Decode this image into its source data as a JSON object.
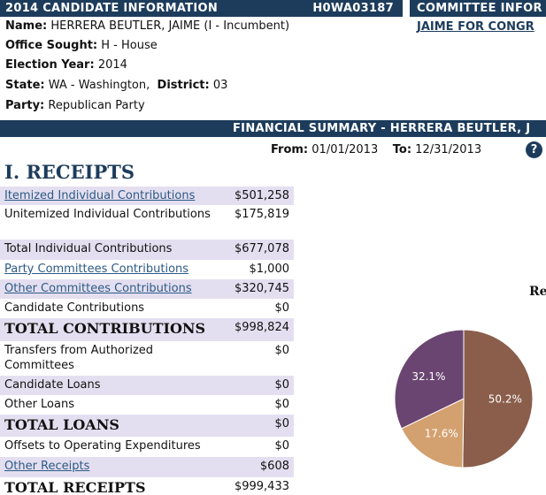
{
  "candidate": {
    "header": "2014 CANDIDATE INFORMATION",
    "id": "H0WA03187",
    "name_label": "Name:",
    "name": "HERRERA BEUTLER, JAIME (I - Incumbent)",
    "office_label": "Office Sought:",
    "office": "H - House",
    "year_label": "Election Year:",
    "year": "2014",
    "state_label": "State:",
    "state": "WA - Washington,",
    "district_label": "District:",
    "district": "03",
    "party_label": "Party:",
    "party": "Republican Party"
  },
  "committee": {
    "header": "COMMITTEE INFOR",
    "name": "JAIME FOR CONGR"
  },
  "summary": {
    "title": "FINANCIAL SUMMARY - HERRERA BEUTLER, J",
    "from_label": "From:",
    "from": "01/01/2013",
    "to_label": "To:",
    "to": "12/31/2013",
    "help": "?"
  },
  "receipts": {
    "title": "I. RECEIPTS",
    "rows": [
      {
        "label": "Itemized Individual Contributions",
        "amount": "$501,258",
        "link": true
      },
      {
        "label": "Unitemized Individual Contributions",
        "amount": "$175,819"
      },
      {
        "label": "Total Individual Contributions",
        "amount": "$677,078"
      },
      {
        "label": "Party Committees Contributions",
        "amount": "$1,000",
        "link": true
      },
      {
        "label": "Other Committees Contributions",
        "amount": "$320,745",
        "link": true
      },
      {
        "label": "Candidate Contributions",
        "amount": "$0"
      },
      {
        "label": "TOTAL CONTRIBUTIONS",
        "amount": "$998,824",
        "total": true
      },
      {
        "label": "Transfers from Authorized Committees",
        "amount": "$0"
      },
      {
        "label": "Candidate Loans",
        "amount": "$0"
      },
      {
        "label": "Other Loans",
        "amount": "$0"
      },
      {
        "label": "TOTAL LOANS",
        "amount": "$0",
        "total": true
      },
      {
        "label": "Offsets to Operating Expenditures",
        "amount": "$0"
      },
      {
        "label": "Other Receipts",
        "amount": "$608",
        "link": true
      },
      {
        "label": "TOTAL RECEIPTS",
        "amount": "$999,433",
        "total": true
      }
    ]
  },
  "chart_data": {
    "type": "pie",
    "title": "Re",
    "values": [
      50.2,
      17.6,
      32.1
    ],
    "value_labels": [
      "50.2%",
      "17.6%",
      "32.1%"
    ],
    "colors": [
      "#8a5e4b",
      "#d3a06f",
      "#6b4571"
    ]
  }
}
